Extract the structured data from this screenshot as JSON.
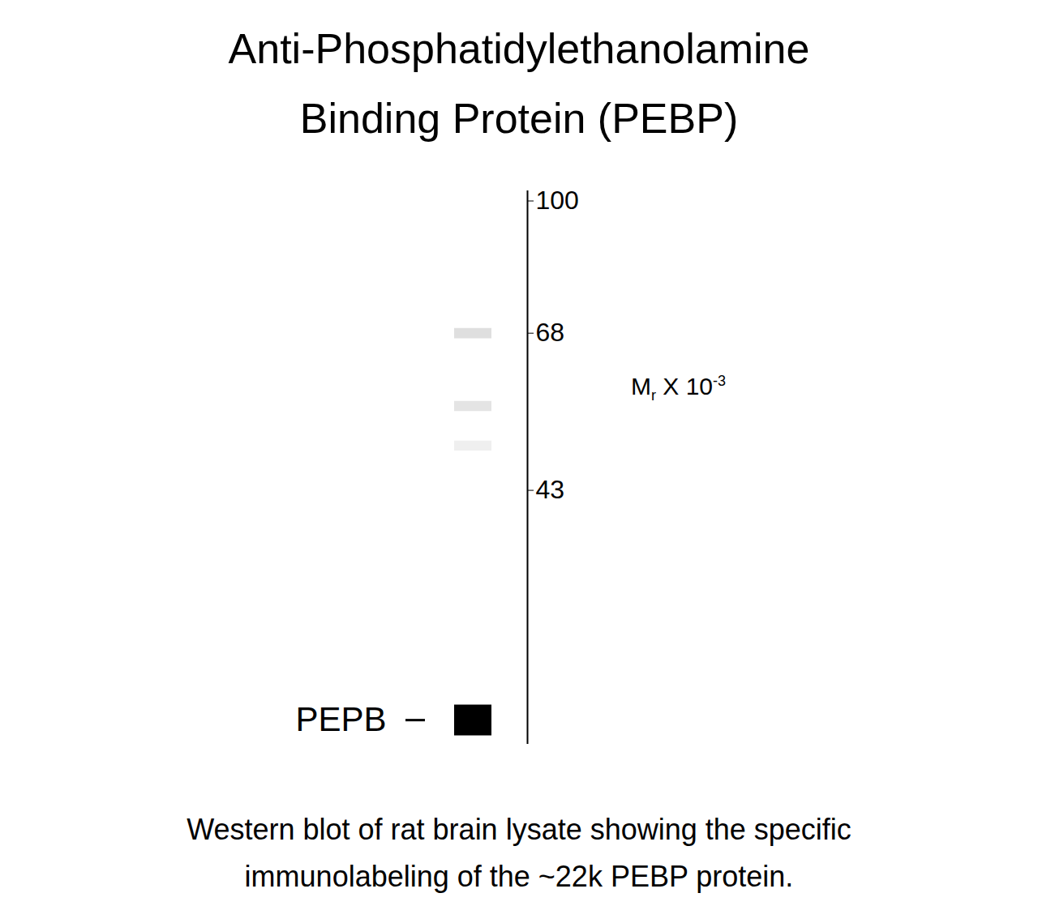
{
  "chart_data": {
    "type": "western_blot",
    "title": [
      "Anti-Phosphatidylethanolamine",
      "Binding Protein (PEBP)"
    ],
    "caption": [
      "Western blot of rat brain lysate showing the specific",
      "immunolabeling of the ~22k PEBP protein."
    ],
    "y_label": {
      "base": "M",
      "sub": "r",
      "mid": " X 10",
      "sup": "-3"
    },
    "log": "y",
    "ylim": [
      20.5,
      103
    ],
    "yticks": [
      100,
      68,
      43
    ],
    "bands": {
      "mw": [
        68,
        55,
        49,
        22
      ],
      "intensity": [
        0.3,
        0.27,
        0.2,
        1
      ],
      "labels": [
        null,
        null,
        null,
        "PEPB"
      ]
    },
    "color": "#000000"
  }
}
